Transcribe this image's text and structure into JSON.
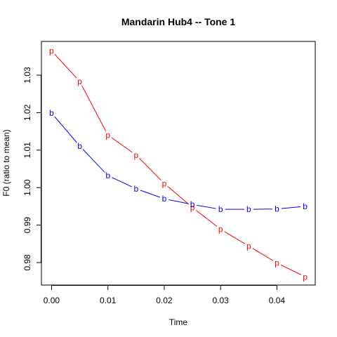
{
  "chart_data": {
    "type": "line",
    "title": "Mandarin Hub4 -- Tone 1",
    "xlabel": "Time",
    "ylabel": "F0 (ratio to mean)",
    "xlim": [
      -0.0018,
      0.0468
    ],
    "ylim": [
      0.974,
      1.039
    ],
    "xticks": [
      0.0,
      0.01,
      0.02,
      0.03,
      0.04
    ],
    "xtick_labels": [
      "0.00",
      "0.01",
      "0.02",
      "0.03",
      "0.04"
    ],
    "yticks": [
      0.98,
      0.99,
      1.0,
      1.01,
      1.02,
      1.03
    ],
    "ytick_labels": [
      "0.98",
      "0.99",
      "1.00",
      "1.01",
      "1.02",
      "1.03"
    ],
    "x": [
      0.0,
      0.005,
      0.01,
      0.015,
      0.02,
      0.025,
      0.03,
      0.035,
      0.04,
      0.045
    ],
    "series": [
      {
        "marker": "p",
        "color": "#ff0000",
        "values": [
          1.0365,
          1.0283,
          1.014,
          1.0087,
          1.0011,
          0.9947,
          0.9889,
          0.9844,
          0.9799,
          0.9762
        ]
      },
      {
        "marker": "b",
        "color": "#0000ff",
        "values": [
          1.0199,
          1.0111,
          1.0032,
          0.9997,
          0.997,
          0.9955,
          0.9942,
          0.9942,
          0.9943,
          0.995
        ]
      }
    ],
    "grid": false,
    "legend": "none"
  }
}
